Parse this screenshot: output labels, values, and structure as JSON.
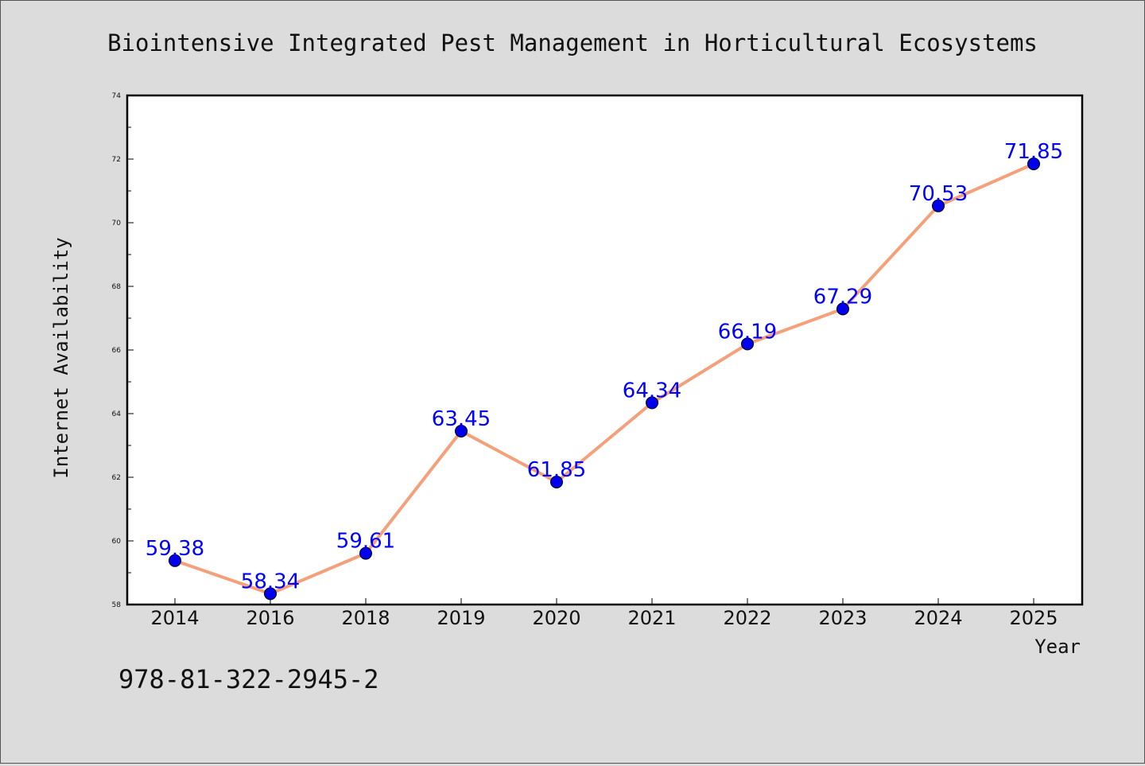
{
  "chart_data": {
    "type": "line",
    "title": "Biointensive Integrated Pest Management in Horticultural Ecosystems",
    "xlabel": "Year",
    "ylabel": "Internet Availability",
    "categories": [
      "2014",
      "2016",
      "2018",
      "2019",
      "2020",
      "2021",
      "2022",
      "2023",
      "2024",
      "2025"
    ],
    "values": [
      59.38,
      58.34,
      59.61,
      63.45,
      61.85,
      64.34,
      66.19,
      67.29,
      70.53,
      71.85
    ],
    "data_labels": [
      "59.38",
      "58.34",
      "59.61",
      "63.45",
      "61.85",
      "64.34",
      "66.19",
      "67.29",
      "70.53",
      "71.85"
    ],
    "ylim": [
      58,
      74
    ],
    "yticks": [
      58,
      60,
      62,
      64,
      66,
      68,
      70,
      72,
      74
    ],
    "grid": false,
    "legend": "none",
    "line_color": "#f4a07a",
    "marker_color": "#0000ee",
    "label_color": "#0000ff"
  },
  "footer": {
    "isbn": "978-81-322-2945-2"
  }
}
